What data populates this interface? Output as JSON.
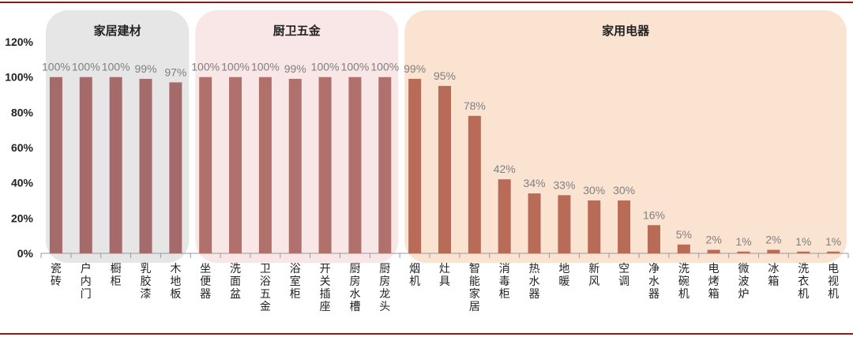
{
  "chart_data": {
    "type": "bar",
    "ylim": [
      0,
      120
    ],
    "yticks": [
      "0%",
      "20%",
      "40%",
      "60%",
      "80%",
      "100%",
      "120%"
    ],
    "groups": [
      {
        "title": "家居建材",
        "color": "#e6e6e6",
        "start": 0,
        "end": 4
      },
      {
        "title": "厨卫五金",
        "color": "#f9e6e6",
        "start": 5,
        "end": 11
      },
      {
        "title": "家用电器",
        "color": "#fbe3d2",
        "start": 12,
        "end": 26
      }
    ],
    "categories": [
      "瓷砖",
      "户内门",
      "橱柜",
      "乳胶漆",
      "木地板",
      "坐便器",
      "洗面盆",
      "卫浴五金",
      "浴室柜",
      "开关插座",
      "厨房水槽",
      "厨房龙头",
      "烟机",
      "灶具",
      "智能家居",
      "消毒柜",
      "热水器",
      "地暖",
      "新风",
      "空调",
      "净水器",
      "洗碗机",
      "电烤箱",
      "微波炉",
      "冰箱",
      "洗衣机",
      "电视机"
    ],
    "values": [
      100,
      100,
      100,
      99,
      97,
      100,
      100,
      100,
      99,
      100,
      100,
      100,
      99,
      95,
      78,
      42,
      34,
      33,
      30,
      30,
      16,
      5,
      2,
      1,
      2,
      1,
      1
    ],
    "value_labels": [
      "100%",
      "100%",
      "100%",
      "99%",
      "97%",
      "100%",
      "100%",
      "100%",
      "99%",
      "100%",
      "100%",
      "100%",
      "99%",
      "95%",
      "78%",
      "42%",
      "34%",
      "33%",
      "30%",
      "30%",
      "16%",
      "5%",
      "2%",
      "1%",
      "2%",
      "1%",
      "1%"
    ],
    "bar_colors": [
      "#a56b6b",
      "#b0706b",
      "#b86c58"
    ],
    "border_color": "#8b1a1a"
  }
}
